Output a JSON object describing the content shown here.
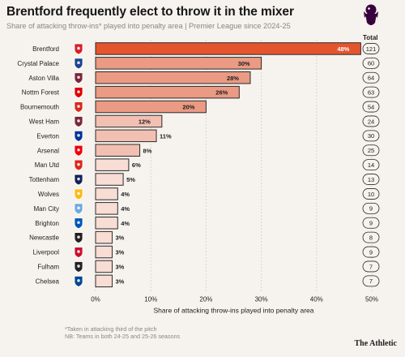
{
  "header": {
    "title": "Brentford frequently elect to throw it in the mixer",
    "subtitle": "Share of attacking throw-ins* played into penalty area | Premier League since 2024-25",
    "total_label": "Total"
  },
  "footer": {
    "note1": "*Taken in attacking third of the pitch",
    "note2": "NB: Teams in both 24-25 and 25-26 seasons",
    "brand": "The Athletic"
  },
  "colors": {
    "highlight": "#e4552e",
    "bar_strong": "#eb9a84",
    "bar_mid": "#f2c0b2",
    "bar_light": "#f8ddd5",
    "bar_stroke": "#2a2a2a",
    "grid": "#d9d4cc"
  },
  "chart_data": {
    "type": "bar",
    "orientation": "horizontal",
    "xlabel": "Share of attacking throw-ins played into penalty area",
    "xlim": [
      0,
      50
    ],
    "xticks": [
      0,
      10,
      20,
      30,
      40,
      50
    ],
    "xtick_labels": [
      "0%",
      "10%",
      "20%",
      "30%",
      "40%",
      "50%"
    ],
    "categories": [
      "Brentford",
      "Crystal Palace",
      "Aston Villa",
      "Nottm Forest",
      "Bournemouth",
      "West Ham",
      "Everton",
      "Arsenal",
      "Man Utd",
      "Tottenham",
      "Wolves",
      "Man City",
      "Brighton",
      "Newcastle",
      "Liverpool",
      "Fulham",
      "Chelsea"
    ],
    "values": [
      48,
      30,
      28,
      26,
      20,
      12,
      11,
      8,
      6,
      5,
      4,
      4,
      4,
      3,
      3,
      3,
      3
    ],
    "value_labels": [
      "48%",
      "30%",
      "28%",
      "26%",
      "20%",
      "12%",
      "11%",
      "8%",
      "6%",
      "5%",
      "4%",
      "4%",
      "4%",
      "3%",
      "3%",
      "3%",
      "3%"
    ],
    "totals": [
      121,
      60,
      64,
      63,
      54,
      24,
      30,
      25,
      14,
      13,
      10,
      9,
      9,
      8,
      9,
      7,
      7
    ],
    "crest_icons": [
      "brentford-crest-icon",
      "crystal-palace-crest-icon",
      "aston-villa-crest-icon",
      "nottm-forest-crest-icon",
      "bournemouth-crest-icon",
      "west-ham-crest-icon",
      "everton-crest-icon",
      "arsenal-crest-icon",
      "man-utd-crest-icon",
      "tottenham-crest-icon",
      "wolves-crest-icon",
      "man-city-crest-icon",
      "brighton-crest-icon",
      "newcastle-crest-icon",
      "liverpool-crest-icon",
      "fulham-crest-icon",
      "chelsea-crest-icon"
    ],
    "crest_colors": [
      "#d71f2d",
      "#1b458f",
      "#7a263a",
      "#dd0000",
      "#da291c",
      "#7a263a",
      "#003399",
      "#ef0107",
      "#da291c",
      "#132257",
      "#fdb913",
      "#6cabdd",
      "#0057b8",
      "#241f20",
      "#c8102e",
      "#222222",
      "#034694"
    ],
    "grid": true
  }
}
